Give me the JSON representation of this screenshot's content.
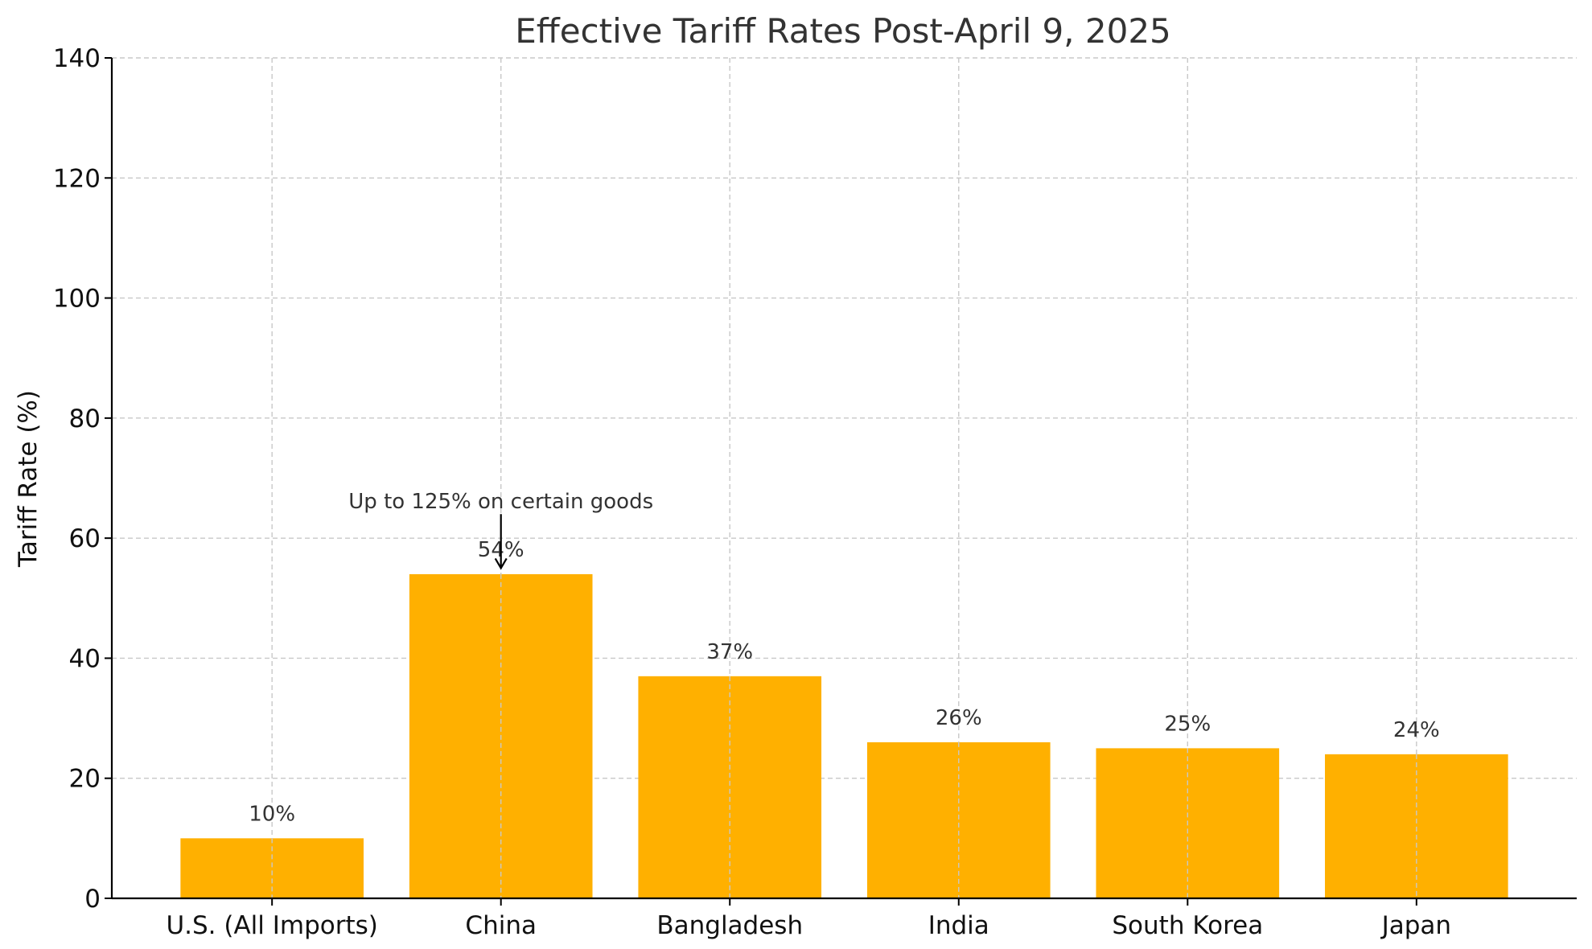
{
  "chart_data": {
    "type": "bar",
    "title": "Effective Tariff Rates Post-April 9, 2025",
    "xlabel": "",
    "ylabel": "Tariff Rate (%)",
    "categories": [
      "U.S. (All Imports)",
      "China",
      "Bangladesh",
      "India",
      "South Korea",
      "Japan"
    ],
    "values": [
      10,
      54,
      37,
      26,
      25,
      24
    ],
    "data_labels": [
      "10%",
      "54%",
      "37%",
      "26%",
      "25%",
      "24%"
    ],
    "ylim": [
      0,
      140
    ],
    "yticks": [
      0,
      20,
      40,
      60,
      80,
      100,
      120,
      140
    ],
    "grid": true,
    "bar_color": "#FFB000",
    "annotations": [
      {
        "text": "Up to 125% on certain goods",
        "category": "China",
        "text_value": 65,
        "arrow_from_value": 64,
        "arrow_to_value": 55
      }
    ]
  }
}
